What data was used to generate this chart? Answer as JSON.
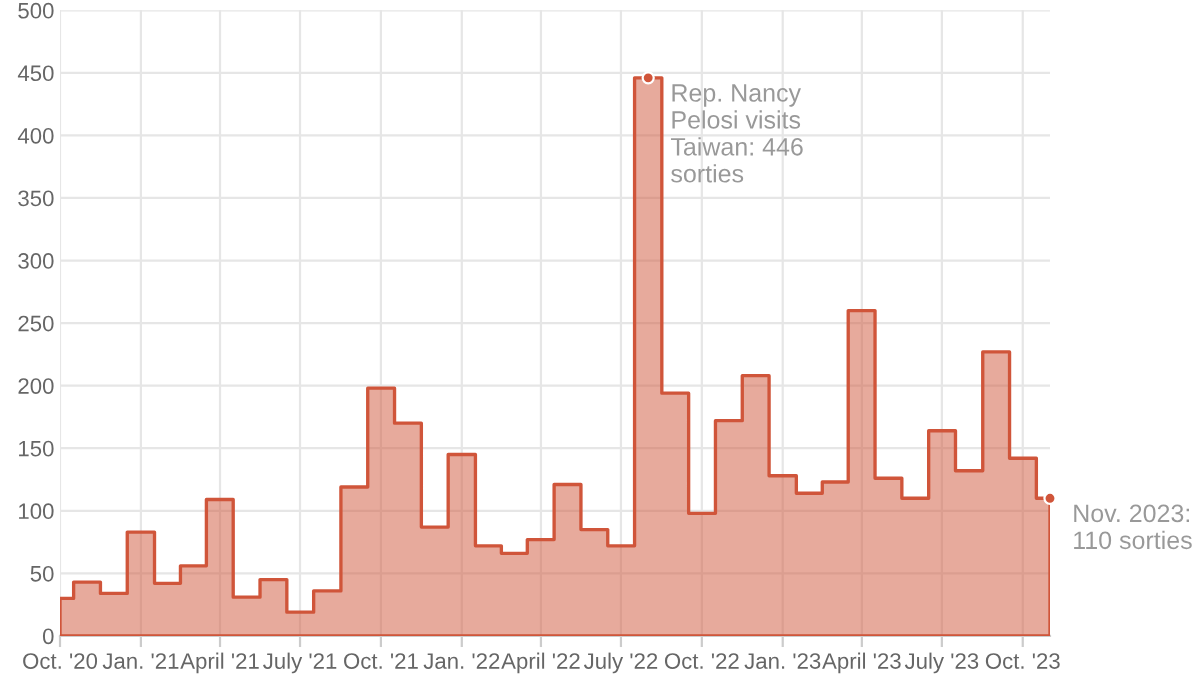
{
  "chart_data": {
    "type": "area",
    "color": "#d0553a",
    "x": [
      "2020-10",
      "2020-11",
      "2020-12",
      "2021-01",
      "2021-02",
      "2021-03",
      "2021-04",
      "2021-05",
      "2021-06",
      "2021-07",
      "2021-08",
      "2021-09",
      "2021-10",
      "2021-11",
      "2021-12",
      "2022-01",
      "2022-02",
      "2022-03",
      "2022-04",
      "2022-05",
      "2022-06",
      "2022-07",
      "2022-08",
      "2022-09",
      "2022-10",
      "2022-11",
      "2022-12",
      "2023-01",
      "2023-02",
      "2023-03",
      "2023-04",
      "2023-05",
      "2023-06",
      "2023-07",
      "2023-08",
      "2023-09",
      "2023-10",
      "2023-11"
    ],
    "values": [
      30,
      43,
      34,
      83,
      42,
      56,
      109,
      31,
      45,
      19,
      36,
      119,
      198,
      170,
      87,
      145,
      72,
      66,
      77,
      121,
      85,
      72,
      446,
      194,
      98,
      172,
      208,
      128,
      114,
      123,
      260,
      126,
      110,
      164,
      132,
      227,
      142,
      110
    ],
    "xlim": [
      "2020-10",
      "2023-11"
    ],
    "xticks": [
      {
        "value": "2020-10",
        "label": "Oct. '20"
      },
      {
        "value": "2021-01",
        "label": "Jan. '21"
      },
      {
        "value": "2021-04",
        "label": "April '21"
      },
      {
        "value": "2021-07",
        "label": "July '21"
      },
      {
        "value": "2021-10",
        "label": "Oct. '21"
      },
      {
        "value": "2022-01",
        "label": "Jan. '22"
      },
      {
        "value": "2022-04",
        "label": "April '22"
      },
      {
        "value": "2022-07",
        "label": "July '22"
      },
      {
        "value": "2022-10",
        "label": "Oct. '22"
      },
      {
        "value": "2023-01",
        "label": "Jan. '23"
      },
      {
        "value": "2023-04",
        "label": "April '23"
      },
      {
        "value": "2023-07",
        "label": "July '23"
      },
      {
        "value": "2023-10",
        "label": "Oct. '23"
      }
    ],
    "ylim": [
      0,
      500
    ],
    "yticks": [
      0,
      50,
      100,
      150,
      200,
      250,
      300,
      350,
      400,
      450,
      500
    ],
    "grid": true,
    "legend": false,
    "annotations": [
      {
        "text": "Rep. Nancy\nPelosi visits\nTaiwan: 446\nsorties",
        "x": "2022-08",
        "y": 446
      },
      {
        "text": "Nov. 2023:\n110 sorties",
        "x": "2023-11",
        "y": 110
      }
    ]
  }
}
